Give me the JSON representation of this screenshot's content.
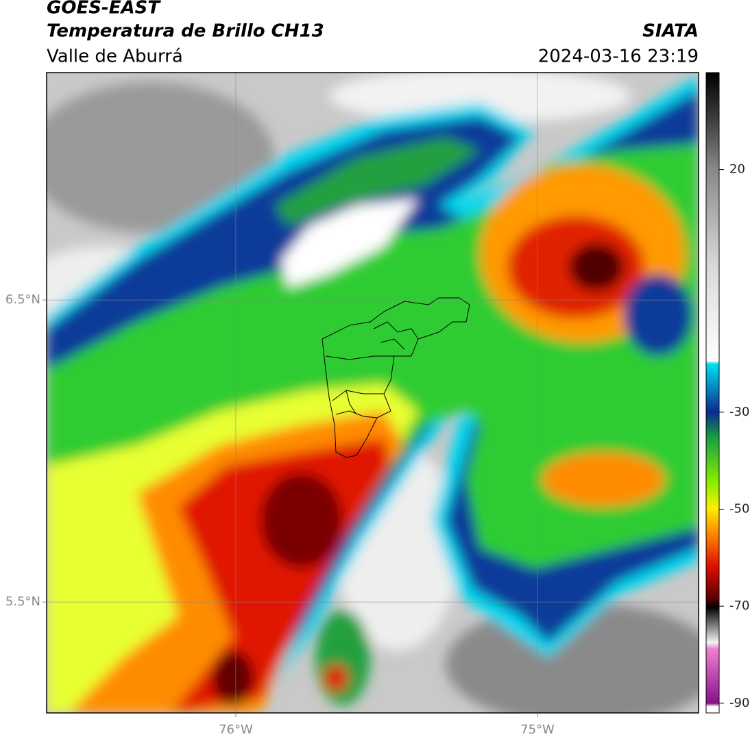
{
  "header": {
    "title": "GOES-EAST",
    "subtitle": "Temperatura de Brillo CH13",
    "region": "Valle de Aburrá",
    "source": "SIATA",
    "datetime": "2024-03-16 23:19"
  },
  "chart_data": {
    "type": "map",
    "xlim": [
      -76.627,
      -74.466
    ],
    "ylim": [
      5.133,
      7.253
    ],
    "xticks": [
      {
        "value": -76,
        "label": "76°W"
      },
      {
        "value": -75,
        "label": "75°W"
      }
    ],
    "yticks": [
      {
        "value": 6.5,
        "label": "6.5°N"
      },
      {
        "value": 5.5,
        "label": "5.5°N"
      }
    ],
    "grid": true,
    "colorbar": {
      "lim": [
        -92,
        40
      ],
      "ticks": [
        20,
        -30,
        -50,
        -70,
        -90
      ]
    }
  }
}
